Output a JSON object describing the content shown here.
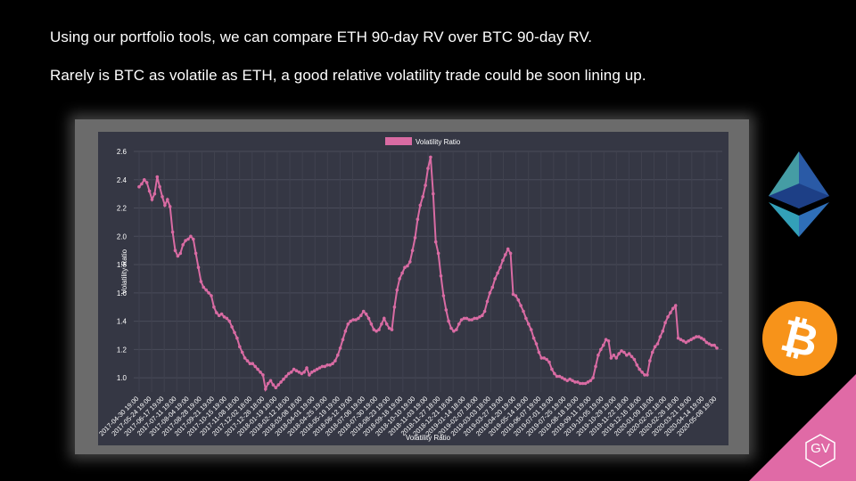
{
  "headline": {
    "line1": "Using our portfolio tools, we can compare ETH 90-day RV over BTC 90-day RV.",
    "line2": "Rarely is BTC as volatile as ETH, a good relative volatility trade could be soon lining up."
  },
  "logo_text": "GV",
  "colors": {
    "series": "#d96ba3",
    "plot_bg": "#353744",
    "frame": "#6b6b6b",
    "btc": "#f7931a",
    "corner": "#e06aa6"
  },
  "icons": {
    "eth": "ethereum-logo-icon",
    "btc": "bitcoin-logo-icon"
  },
  "chart_data": {
    "type": "line",
    "legend": "Volatility Ratio",
    "legend_position": "top-center",
    "xlabel": "Volatility Ratio",
    "ylabel": "Volatility Ratio",
    "ylim": [
      0.9,
      2.6
    ],
    "yticks": [
      "1.0",
      "1.2",
      "1.4",
      "1.6",
      "1.8",
      "2.0",
      "2.2",
      "2.4",
      "2.6"
    ],
    "grid": true,
    "x_ticks": [
      "2017-04-30 19:00",
      "2017-05-24 19:00",
      "2017-06-17 19:00",
      "2017-07-11 19:00",
      "2017-08-04 19:00",
      "2017-08-28 19:00",
      "2017-09-21 19:00",
      "2017-10-15 19:00",
      "2017-11-08 18:00",
      "2017-12-02 18:00",
      "2017-12-26 18:00",
      "2018-01-19 18:00",
      "2018-02-12 18:00",
      "2018-03-08 18:00",
      "2018-04-01 19:00",
      "2018-04-25 19:00",
      "2018-05-19 19:00",
      "2018-06-12 19:00",
      "2018-07-06 19:00",
      "2018-07-30 19:00",
      "2018-08-23 19:00",
      "2018-09-16 19:00",
      "2018-10-10 19:00",
      "2018-11-03 19:00",
      "2018-11-27 18:00",
      "2018-12-21 18:00",
      "2019-01-14 18:00",
      "2019-02-07 18:00",
      "2019-03-03 18:00",
      "2019-03-27 19:00",
      "2019-04-20 19:00",
      "2019-05-14 19:00",
      "2019-06-07 19:00",
      "2019-07-01 19:00",
      "2019-07-25 19:00",
      "2019-08-18 19:00",
      "2019-09-11 19:00",
      "2019-10-05 19:00",
      "2019-10-29 19:00",
      "2019-11-22 18:00",
      "2019-12-16 18:00",
      "2020-01-09 18:00",
      "2020-02-02 18:00",
      "2020-02-26 18:00",
      "2020-03-21 19:00",
      "2020-04-14 19:00",
      "2020-05-08 19:00"
    ],
    "series": [
      {
        "name": "Volatility Ratio",
        "values": [
          2.35,
          2.37,
          2.4,
          2.38,
          2.32,
          2.26,
          2.3,
          2.42,
          2.35,
          2.28,
          2.22,
          2.26,
          2.21,
          2.03,
          1.9,
          1.86,
          1.88,
          1.94,
          1.97,
          1.98,
          2.0,
          1.98,
          1.88,
          1.78,
          1.68,
          1.64,
          1.62,
          1.6,
          1.58,
          1.5,
          1.46,
          1.44,
          1.45,
          1.43,
          1.42,
          1.4,
          1.36,
          1.32,
          1.28,
          1.22,
          1.18,
          1.14,
          1.12,
          1.1,
          1.1,
          1.08,
          1.06,
          1.04,
          1.02,
          0.92,
          0.96,
          0.98,
          0.95,
          0.93,
          0.95,
          0.97,
          0.99,
          1.01,
          1.03,
          1.04,
          1.06,
          1.05,
          1.04,
          1.03,
          1.04,
          1.07,
          1.02,
          1.04,
          1.05,
          1.06,
          1.07,
          1.08,
          1.08,
          1.09,
          1.09,
          1.1,
          1.12,
          1.16,
          1.21,
          1.27,
          1.33,
          1.38,
          1.4,
          1.41,
          1.41,
          1.42,
          1.44,
          1.47,
          1.45,
          1.42,
          1.38,
          1.34,
          1.33,
          1.34,
          1.38,
          1.42,
          1.38,
          1.35,
          1.34,
          1.5,
          1.62,
          1.7,
          1.74,
          1.78,
          1.79,
          1.82,
          1.9,
          1.99,
          2.12,
          2.22,
          2.28,
          2.36,
          2.48,
          2.56,
          2.3,
          1.96,
          1.88,
          1.72,
          1.58,
          1.48,
          1.4,
          1.35,
          1.33,
          1.34,
          1.38,
          1.41,
          1.42,
          1.42,
          1.41,
          1.41,
          1.42,
          1.42,
          1.43,
          1.44,
          1.47,
          1.54,
          1.6,
          1.64,
          1.7,
          1.74,
          1.78,
          1.83,
          1.87,
          1.91,
          1.88,
          1.59,
          1.58,
          1.55,
          1.51,
          1.47,
          1.42,
          1.38,
          1.34,
          1.28,
          1.24,
          1.18,
          1.14,
          1.14,
          1.13,
          1.11,
          1.06,
          1.03,
          1.01,
          1.01,
          1.0,
          0.99,
          0.98,
          0.99,
          0.98,
          0.97,
          0.97,
          0.96,
          0.96,
          0.96,
          0.97,
          0.98,
          1.0,
          1.08,
          1.16,
          1.2,
          1.23,
          1.27,
          1.26,
          1.14,
          1.16,
          1.14,
          1.17,
          1.19,
          1.18,
          1.16,
          1.17,
          1.15,
          1.13,
          1.09,
          1.06,
          1.04,
          1.02,
          1.02,
          1.12,
          1.18,
          1.22,
          1.24,
          1.29,
          1.33,
          1.39,
          1.43,
          1.46,
          1.49,
          1.51,
          1.28,
          1.27,
          1.26,
          1.25,
          1.26,
          1.27,
          1.28,
          1.29,
          1.29,
          1.28,
          1.27,
          1.25,
          1.24,
          1.23,
          1.23,
          1.21
        ]
      }
    ]
  }
}
